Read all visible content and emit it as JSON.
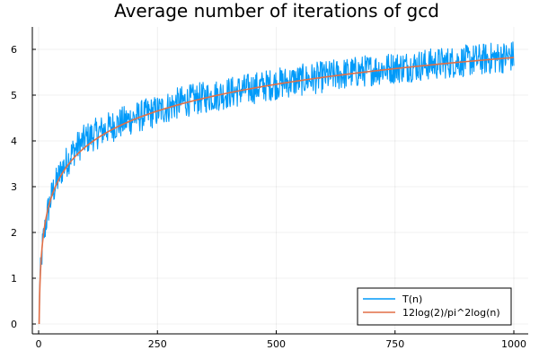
{
  "chart_data": {
    "type": "line",
    "title": "Average number of iterations of gcd",
    "xlabel": "",
    "ylabel": "",
    "xlim": [
      0,
      1000
    ],
    "ylim": [
      0,
      6.5
    ],
    "xticks": [
      0,
      250,
      500,
      750,
      1000
    ],
    "yticks": [
      0,
      1,
      2,
      3,
      4,
      5,
      6
    ],
    "xtick_labels": [
      "0",
      "250",
      "500",
      "750",
      "1000"
    ],
    "ytick_labels": [
      "0",
      "1",
      "2",
      "3",
      "4",
      "5",
      "6"
    ],
    "grid": true,
    "legend_position": "bottom-right",
    "series": [
      {
        "name": "T(n)",
        "color": "#009af9",
        "style": "noisy",
        "x": [
          1,
          2,
          3,
          5,
          8,
          12,
          20,
          30,
          50,
          75,
          100,
          150,
          200,
          250,
          300,
          400,
          500,
          600,
          700,
          750,
          800,
          900,
          1000
        ],
        "y": [
          0,
          0.5,
          1.0,
          1.2,
          1.7,
          2.0,
          2.5,
          2.9,
          3.4,
          3.8,
          4.05,
          4.3,
          4.5,
          4.65,
          4.85,
          5.05,
          5.25,
          5.4,
          5.55,
          5.6,
          5.65,
          5.75,
          5.85
        ],
        "noise_amplitude": 0.35
      },
      {
        "name": "12log(2)/pi^2log(n)",
        "color": "#e26f46",
        "style": "smooth",
        "formula": "12*log(2)/pi^2*log(n)",
        "x_range": [
          1,
          1000
        ]
      }
    ]
  }
}
